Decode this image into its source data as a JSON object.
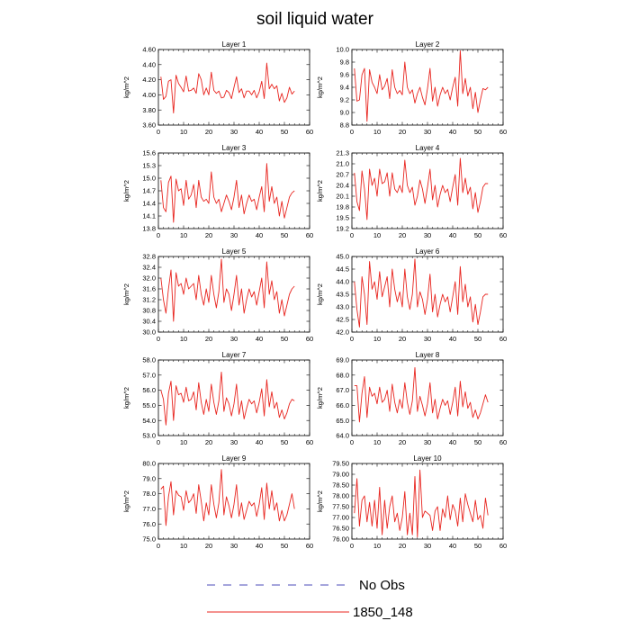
{
  "title": "soil liquid water",
  "legend": {
    "items": [
      {
        "label": "No Obs",
        "color": "#4b4bb8",
        "dash": "dashed"
      },
      {
        "label": "1850_148",
        "color": "#e8251f",
        "dash": "solid"
      }
    ]
  },
  "series_color": "#e8251f",
  "chart_data": [
    {
      "type": "line",
      "title": "Layer 1",
      "ylabel": "kg/m^2",
      "xlim": [
        0,
        60
      ],
      "xticks": [
        0,
        10,
        20,
        30,
        40,
        50,
        60
      ],
      "ylim": [
        3.6,
        4.6
      ],
      "yticks": [
        "3.60",
        "3.80",
        "4.00",
        "4.20",
        "4.40",
        "4.60"
      ],
      "series": [
        {
          "x_start": 1,
          "values": [
            4.24,
            3.94,
            3.98,
            4.18,
            4.2,
            3.76,
            4.26,
            4.15,
            4.1,
            4.04,
            4.25,
            4.05,
            4.06,
            4.09,
            4.02,
            4.28,
            4.2,
            4.0,
            4.09,
            4.0,
            4.3,
            4.06,
            4.02,
            4.05,
            3.96,
            3.97,
            4.06,
            4.03,
            3.95,
            4.1,
            4.24,
            4.03,
            4.08,
            3.96,
            4.05,
            4.05,
            4.0,
            4.06,
            3.96,
            4.04,
            4.18,
            3.95,
            4.42,
            4.08,
            4.14,
            4.08,
            4.12,
            3.92,
            4.02,
            3.9,
            3.96,
            4.1,
            4.01,
            4.05
          ]
        }
      ]
    },
    {
      "type": "line",
      "title": "Layer 2",
      "ylabel": "kg/m^2",
      "xlim": [
        0,
        60
      ],
      "xticks": [
        0,
        10,
        20,
        30,
        40,
        50,
        60
      ],
      "ylim": [
        8.8,
        10.0
      ],
      "yticks": [
        "8.8",
        "9.0",
        "9.2",
        "9.4",
        "9.6",
        "9.8",
        "10.0"
      ],
      "series": [
        {
          "x_start": 1,
          "values": [
            9.7,
            9.18,
            9.2,
            9.6,
            9.7,
            8.86,
            9.68,
            9.48,
            9.4,
            9.3,
            9.6,
            9.36,
            9.42,
            9.54,
            9.22,
            9.68,
            9.4,
            9.3,
            9.35,
            9.28,
            9.8,
            9.4,
            9.3,
            9.36,
            9.15,
            9.3,
            9.4,
            9.24,
            9.12,
            9.38,
            9.7,
            9.18,
            9.4,
            9.1,
            9.28,
            9.4,
            9.3,
            9.36,
            9.2,
            9.4,
            9.56,
            9.1,
            9.98,
            9.3,
            9.54,
            9.26,
            9.4,
            9.06,
            9.32,
            9.0,
            9.2,
            9.38,
            9.36,
            9.4
          ]
        }
      ]
    },
    {
      "type": "line",
      "title": "Layer 3",
      "ylabel": "kg/m^2",
      "xlim": [
        0,
        60
      ],
      "xticks": [
        0,
        10,
        20,
        30,
        40,
        50,
        60
      ],
      "ylim": [
        13.8,
        15.6
      ],
      "yticks": [
        "13.8",
        "14.1",
        "14.4",
        "14.7",
        "15.0",
        "15.3",
        "15.6"
      ],
      "series": [
        {
          "x_start": 1,
          "values": [
            14.95,
            14.3,
            14.2,
            14.9,
            15.05,
            13.95,
            14.98,
            14.7,
            14.75,
            14.35,
            14.95,
            14.5,
            14.6,
            14.85,
            14.3,
            14.95,
            14.55,
            14.45,
            14.5,
            14.4,
            15.15,
            14.55,
            14.4,
            14.5,
            14.2,
            14.4,
            14.6,
            14.45,
            14.25,
            14.55,
            14.95,
            14.3,
            14.6,
            14.15,
            14.4,
            14.6,
            14.45,
            14.5,
            14.25,
            14.55,
            14.8,
            14.2,
            15.35,
            14.45,
            14.8,
            14.4,
            14.55,
            14.1,
            14.45,
            14.05,
            14.3,
            14.55,
            14.65,
            14.7
          ]
        }
      ]
    },
    {
      "type": "line",
      "title": "Layer 4",
      "ylabel": "kg/m^2",
      "xlim": [
        0,
        60
      ],
      "xticks": [
        0,
        10,
        20,
        30,
        40,
        50,
        60
      ],
      "ylim": [
        19.2,
        21.3
      ],
      "yticks": [
        "19.2",
        "19.5",
        "19.8",
        "20.1",
        "20.4",
        "20.7",
        "21.0",
        "21.3"
      ],
      "series": [
        {
          "x_start": 1,
          "values": [
            20.75,
            19.95,
            19.7,
            20.8,
            20.3,
            19.45,
            20.85,
            20.4,
            20.6,
            20.1,
            20.85,
            20.45,
            20.5,
            20.75,
            20.1,
            20.75,
            20.3,
            20.2,
            20.4,
            20.2,
            21.1,
            20.4,
            20.2,
            20.35,
            19.85,
            20.1,
            20.55,
            20.3,
            19.9,
            20.35,
            20.85,
            20.0,
            20.4,
            19.8,
            20.15,
            20.4,
            20.2,
            20.3,
            19.95,
            20.35,
            20.7,
            19.85,
            21.15,
            20.2,
            20.6,
            20.15,
            20.35,
            19.75,
            20.2,
            19.65,
            19.95,
            20.35,
            20.45,
            20.45
          ]
        }
      ]
    },
    {
      "type": "line",
      "title": "Layer 5",
      "ylabel": "kg/m^2",
      "xlim": [
        0,
        60
      ],
      "xticks": [
        0,
        10,
        20,
        30,
        40,
        50,
        60
      ],
      "ylim": [
        30.0,
        32.8
      ],
      "yticks": [
        "30.0",
        "30.4",
        "30.8",
        "31.2",
        "31.6",
        "32.0",
        "32.4",
        "32.8"
      ],
      "series": [
        {
          "x_start": 1,
          "values": [
            32.0,
            31.2,
            30.7,
            31.6,
            32.3,
            30.4,
            32.2,
            31.7,
            31.8,
            31.4,
            32.0,
            31.6,
            31.7,
            31.8,
            31.2,
            32.1,
            31.4,
            31.0,
            31.6,
            31.1,
            32.1,
            31.4,
            30.9,
            31.5,
            32.7,
            31.1,
            31.6,
            31.4,
            30.8,
            31.4,
            32.1,
            31.0,
            31.6,
            30.7,
            31.2,
            31.6,
            31.3,
            31.5,
            31.0,
            31.5,
            32.0,
            30.9,
            32.6,
            31.4,
            31.9,
            31.2,
            31.5,
            30.7,
            31.2,
            30.6,
            31.0,
            31.4,
            31.6,
            31.7
          ]
        }
      ]
    },
    {
      "type": "line",
      "title": "Layer 6",
      "ylabel": "kg/m^2",
      "xlim": [
        0,
        60
      ],
      "xticks": [
        0,
        10,
        20,
        30,
        40,
        50,
        60
      ],
      "ylim": [
        42.0,
        45.0
      ],
      "yticks": [
        "42.0",
        "42.5",
        "43.0",
        "43.5",
        "44.0",
        "44.5",
        "45.0"
      ],
      "series": [
        {
          "x_start": 1,
          "values": [
            44.0,
            42.9,
            42.2,
            44.2,
            43.5,
            42.3,
            44.8,
            43.7,
            44.0,
            43.3,
            44.4,
            43.4,
            43.8,
            44.2,
            43.0,
            44.5,
            43.7,
            43.2,
            43.6,
            43.0,
            44.5,
            43.4,
            42.9,
            43.5,
            44.9,
            43.0,
            43.6,
            43.3,
            42.7,
            43.3,
            44.3,
            42.8,
            43.5,
            42.6,
            43.1,
            43.5,
            43.2,
            43.4,
            42.8,
            43.4,
            44.0,
            42.7,
            44.6,
            43.2,
            43.9,
            43.0,
            43.4,
            42.4,
            43.1,
            42.3,
            42.8,
            43.4,
            43.5,
            43.5
          ]
        }
      ]
    },
    {
      "type": "line",
      "title": "Layer 7",
      "ylabel": "kg/m^2",
      "xlim": [
        0,
        60
      ],
      "xticks": [
        0,
        10,
        20,
        30,
        40,
        50,
        60
      ],
      "ylim": [
        53.0,
        58.0
      ],
      "yticks": [
        "53.0",
        "54.0",
        "55.0",
        "56.0",
        "57.0",
        "58.0"
      ],
      "series": [
        {
          "x_start": 1,
          "values": [
            56.0,
            55.4,
            53.7,
            55.8,
            56.6,
            54.0,
            56.3,
            55.7,
            55.8,
            55.2,
            56.2,
            55.3,
            55.4,
            55.9,
            54.7,
            56.5,
            55.2,
            54.4,
            55.4,
            54.6,
            56.4,
            55.2,
            54.4,
            55.3,
            57.2,
            54.6,
            55.5,
            55.1,
            54.3,
            55.1,
            56.4,
            54.4,
            55.3,
            54.1,
            54.8,
            55.4,
            55.1,
            55.3,
            54.5,
            55.2,
            56.1,
            54.3,
            56.7,
            54.9,
            55.9,
            54.8,
            55.2,
            54.2,
            54.7,
            54.1,
            54.5,
            55.1,
            55.4,
            55.3
          ]
        }
      ]
    },
    {
      "type": "line",
      "title": "Layer 8",
      "ylabel": "kg/m^2",
      "xlim": [
        0,
        60
      ],
      "xticks": [
        0,
        10,
        20,
        30,
        40,
        50,
        60
      ],
      "ylim": [
        64.0,
        69.0
      ],
      "yticks": [
        "64.0",
        "65.0",
        "66.0",
        "67.0",
        "68.0",
        "69.0"
      ],
      "series": [
        {
          "x_start": 1,
          "values": [
            67.3,
            67.3,
            64.9,
            66.8,
            67.9,
            65.2,
            67.2,
            66.6,
            66.8,
            66.1,
            67.2,
            66.2,
            66.4,
            67.0,
            65.6,
            67.4,
            66.2,
            65.5,
            66.4,
            65.8,
            67.5,
            66.2,
            65.4,
            66.3,
            68.5,
            65.6,
            66.6,
            66.0,
            65.3,
            66.1,
            67.5,
            65.5,
            66.4,
            65.1,
            65.8,
            66.4,
            66.0,
            66.3,
            65.4,
            66.2,
            67.2,
            65.3,
            67.6,
            65.9,
            66.9,
            65.8,
            66.2,
            65.2,
            65.7,
            65.1,
            65.5,
            66.1,
            66.7,
            66.2
          ]
        }
      ]
    },
    {
      "type": "line",
      "title": "Layer 9",
      "ylabel": "kg/m^2",
      "xlim": [
        0,
        60
      ],
      "xticks": [
        0,
        10,
        20,
        30,
        40,
        50,
        60
      ],
      "ylim": [
        75.0,
        80.0
      ],
      "yticks": [
        "75.0",
        "76.0",
        "77.0",
        "78.0",
        "79.0",
        "80.0"
      ],
      "series": [
        {
          "x_start": 1,
          "values": [
            78.3,
            78.5,
            75.9,
            77.8,
            78.8,
            76.6,
            78.2,
            77.9,
            77.8,
            76.9,
            78.2,
            77.4,
            77.6,
            78.0,
            76.7,
            78.6,
            77.5,
            76.2,
            77.4,
            76.6,
            78.6,
            77.3,
            76.4,
            77.4,
            79.6,
            76.6,
            77.8,
            77.2,
            76.4,
            77.3,
            78.6,
            76.5,
            77.4,
            76.3,
            76.9,
            77.5,
            77.2,
            77.4,
            76.5,
            77.3,
            78.4,
            76.3,
            78.7,
            77.0,
            78.2,
            76.9,
            77.4,
            76.2,
            76.9,
            76.2,
            76.6,
            77.3,
            78.0,
            77.0
          ]
        }
      ]
    },
    {
      "type": "line",
      "title": "Layer 10",
      "ylabel": "kg/m^2",
      "xlim": [
        0,
        60
      ],
      "xticks": [
        0,
        10,
        20,
        30,
        40,
        50,
        60
      ],
      "ylim": [
        76.0,
        79.5
      ],
      "yticks": [
        "76.00",
        "76.50",
        "77.00",
        "77.50",
        "78.00",
        "78.50",
        "79.00",
        "79.50"
      ],
      "series": [
        {
          "x_start": 1,
          "values": [
            77.2,
            78.8,
            76.6,
            77.8,
            78.0,
            76.8,
            77.7,
            76.6,
            77.8,
            76.5,
            78.4,
            76.2,
            77.8,
            76.5,
            77.5,
            78.0,
            76.8,
            77.2,
            76.4,
            77.0,
            78.2,
            76.2,
            77.2,
            76.2,
            78.9,
            76.1,
            79.2,
            77.0,
            77.3,
            77.2,
            77.1,
            76.4,
            77.3,
            77.5,
            76.4,
            77.4,
            77.0,
            78.0,
            76.9,
            77.6,
            77.3,
            76.6,
            77.9,
            76.8,
            78.1,
            77.6,
            77.2,
            76.8,
            77.8,
            76.9,
            77.1,
            76.5,
            77.9,
            77.1
          ]
        }
      ]
    }
  ]
}
